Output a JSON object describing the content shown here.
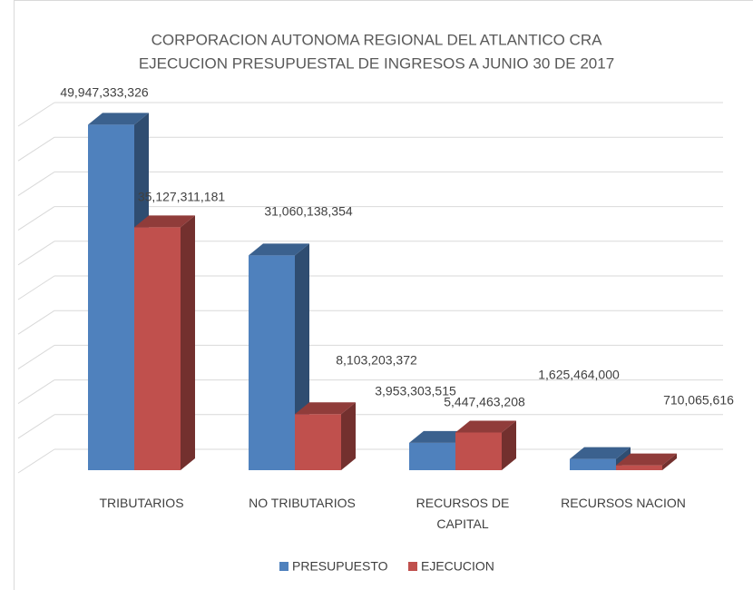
{
  "chart_data": {
    "type": "bar3d",
    "title": "CORPORACION AUTONOMA REGIONAL DEL ATLANTICO CRA",
    "subtitle": "EJECUCION PRESUPUESTAL DE INGRESOS  A JUNIO 30 DE 2017",
    "categories": [
      "TRIBUTARIOS",
      "NO TRIBUTARIOS",
      "RECURSOS DE CAPITAL",
      "RECURSOS NACION"
    ],
    "series": [
      {
        "name": "PRESUPUESTO",
        "color": "#4f81bd",
        "values": [
          49947333326,
          31060138354,
          3953303515,
          1625464000
        ],
        "value_labels": [
          "49,947,333,326",
          "31,060,138,354",
          "3,953,303,515",
          "1,625,464,000"
        ]
      },
      {
        "name": "EJECUCION",
        "color": "#c0504d",
        "values": [
          35127311181,
          8103203372,
          5447463208,
          710065616
        ],
        "value_labels": [
          "35,127,311,181",
          "8,103,203,372",
          "5,447,463,208",
          "710,065,616"
        ]
      }
    ],
    "ylim": [
      0,
      50000000000
    ],
    "grid": true,
    "legend": "bottom"
  }
}
